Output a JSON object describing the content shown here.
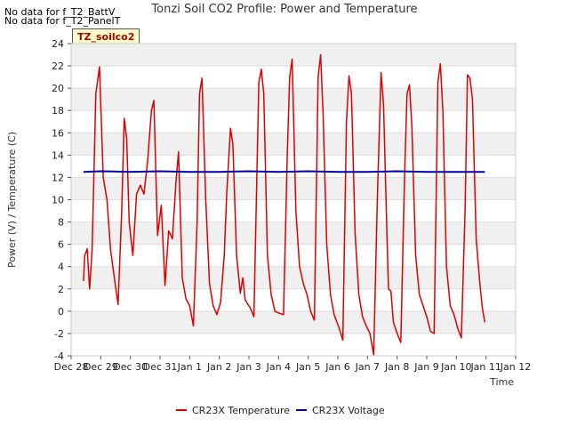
{
  "notes": [
    "No data for f_T2_BattV",
    "No data for f_T2_PanelT"
  ],
  "badge": "TZ_soilco2",
  "chart_data": {
    "type": "line",
    "title": "Tonzi Soil CO2 Profile: Power and Temperature",
    "xlabel": "Time",
    "ylabel": "Power (V) / Temperature (C)",
    "ylim": [
      -4,
      24
    ],
    "yticks": [
      -4,
      -2,
      0,
      2,
      4,
      6,
      8,
      10,
      12,
      14,
      16,
      18,
      20,
      22,
      24
    ],
    "xlim": [
      "2023-12-28",
      "2024-01-12"
    ],
    "xtick_labels": [
      "Dec 28",
      "Dec 29",
      "Dec 30",
      "Dec 31",
      "Jan 1",
      "Jan 2",
      "Jan 3",
      "Jan 4",
      "Jan 5",
      "Jan 6",
      "Jan 7",
      "Jan 8",
      "Jan 9",
      "Jan 10",
      "Jan 11",
      "Jan 12"
    ],
    "grid": "horizontal bands",
    "legend_position": "bottom",
    "series": [
      {
        "name": "CR23X Temperature",
        "color": "#dd0000",
        "points": [
          [
            "2023-12-28 10:00",
            2.7
          ],
          [
            "2023-12-28 11:00",
            5.0
          ],
          [
            "2023-12-28 13:00",
            5.6
          ],
          [
            "2023-12-28 15:00",
            2.0
          ],
          [
            "2023-12-28 17:00",
            5.5
          ],
          [
            "2023-12-28 20:00",
            19.5
          ],
          [
            "2023-12-28 23:00",
            21.9
          ],
          [
            "2023-12-29 02:00",
            12.0
          ],
          [
            "2023-12-29 05:00",
            10.0
          ],
          [
            "2023-12-29 08:00",
            5.5
          ],
          [
            "2023-12-29 11:00",
            3.0
          ],
          [
            "2023-12-29 14:00",
            0.6
          ],
          [
            "2023-12-29 17:00",
            9.0
          ],
          [
            "2023-12-29 19:00",
            17.3
          ],
          [
            "2023-12-29 21:00",
            15.5
          ],
          [
            "2023-12-29 23:00",
            8.0
          ],
          [
            "2023-12-30 02:00",
            5.0
          ],
          [
            "2023-12-30 05:00",
            10.5
          ],
          [
            "2023-12-30 08:00",
            11.3
          ],
          [
            "2023-12-30 11:00",
            10.5
          ],
          [
            "2023-12-30 14:00",
            13.5
          ],
          [
            "2023-12-30 17:00",
            18.0
          ],
          [
            "2023-12-30 19:00",
            18.9
          ],
          [
            "2023-12-30 22:00",
            6.8
          ],
          [
            "2023-12-31 01:00",
            9.5
          ],
          [
            "2023-12-31 04:00",
            2.3
          ],
          [
            "2023-12-31 07:00",
            7.2
          ],
          [
            "2023-12-31 10:00",
            6.5
          ],
          [
            "2023-12-31 13:00",
            11.8
          ],
          [
            "2023-12-31 15:00",
            14.3
          ],
          [
            "2023-12-31 18:00",
            3.0
          ],
          [
            "2023-12-31 21:00",
            1.1
          ],
          [
            "2024-01-01 00:00",
            0.5
          ],
          [
            "2024-01-01 03:00",
            -1.3
          ],
          [
            "2024-01-01 06:00",
            8.0
          ],
          [
            "2024-01-01 08:00",
            19.5
          ],
          [
            "2024-01-01 10:00",
            20.9
          ],
          [
            "2024-01-01 13:00",
            10.0
          ],
          [
            "2024-01-01 16:00",
            2.5
          ],
          [
            "2024-01-01 19:00",
            0.5
          ],
          [
            "2024-01-01 22:00",
            -0.3
          ],
          [
            "2024-01-02 01:00",
            0.8
          ],
          [
            "2024-01-02 04:00",
            5.0
          ],
          [
            "2024-01-02 06:00",
            10.5
          ],
          [
            "2024-01-02 09:00",
            16.4
          ],
          [
            "2024-01-02 11:00",
            15.0
          ],
          [
            "2024-01-02 14:00",
            5.0
          ],
          [
            "2024-01-02 17:00",
            1.6
          ],
          [
            "2024-01-02 19:00",
            3.0
          ],
          [
            "2024-01-02 21:00",
            1.0
          ],
          [
            "2024-01-03 01:00",
            0.3
          ],
          [
            "2024-01-03 04:00",
            -0.5
          ],
          [
            "2024-01-03 08:00",
            20.5
          ],
          [
            "2024-01-03 10:00",
            21.7
          ],
          [
            "2024-01-03 12:00",
            19.5
          ],
          [
            "2024-01-03 15:00",
            5.0
          ],
          [
            "2024-01-03 18:00",
            1.5
          ],
          [
            "2024-01-03 21:00",
            0.0
          ],
          [
            "2024-01-04 01:00",
            -0.2
          ],
          [
            "2024-01-04 04:00",
            -0.3
          ],
          [
            "2024-01-04 07:00",
            14.0
          ],
          [
            "2024-01-04 09:00",
            21.0
          ],
          [
            "2024-01-04 11:00",
            22.6
          ],
          [
            "2024-01-04 14:00",
            9.0
          ],
          [
            "2024-01-04 17:00",
            4.0
          ],
          [
            "2024-01-04 20:00",
            2.5
          ],
          [
            "2024-01-04 23:00",
            1.5
          ],
          [
            "2024-01-05 02:00",
            0.0
          ],
          [
            "2024-01-05 05:00",
            -0.8
          ],
          [
            "2024-01-05 08:00",
            21.0
          ],
          [
            "2024-01-05 10:00",
            23.0
          ],
          [
            "2024-01-05 12:00",
            18.0
          ],
          [
            "2024-01-05 15:00",
            6.0
          ],
          [
            "2024-01-05 18:00",
            1.5
          ],
          [
            "2024-01-05 21:00",
            -0.3
          ],
          [
            "2024-01-06 01:00",
            -1.5
          ],
          [
            "2024-01-06 04:00",
            -2.6
          ],
          [
            "2024-01-06 07:00",
            17.0
          ],
          [
            "2024-01-06 09:00",
            21.1
          ],
          [
            "2024-01-06 11:00",
            19.5
          ],
          [
            "2024-01-06 14:00",
            7.0
          ],
          [
            "2024-01-06 17:00",
            1.5
          ],
          [
            "2024-01-06 20:00",
            -0.5
          ],
          [
            "2024-01-06 23:00",
            -1.3
          ],
          [
            "2024-01-07 02:00",
            -2.0
          ],
          [
            "2024-01-07 05:00",
            -3.9
          ],
          [
            "2024-01-07 08:00",
            10.0
          ],
          [
            "2024-01-07 11:00",
            21.4
          ],
          [
            "2024-01-07 13:00",
            18.5
          ],
          [
            "2024-01-07 15:00",
            10.0
          ],
          [
            "2024-01-07 17:00",
            2.0
          ],
          [
            "2024-01-07 19:00",
            1.8
          ],
          [
            "2024-01-07 21:00",
            -1.0
          ],
          [
            "2024-01-08 00:00",
            -2.0
          ],
          [
            "2024-01-08 03:00",
            -2.8
          ],
          [
            "2024-01-08 06:00",
            12.0
          ],
          [
            "2024-01-08 08:00",
            19.5
          ],
          [
            "2024-01-08 10:00",
            20.3
          ],
          [
            "2024-01-08 12:00",
            16.5
          ],
          [
            "2024-01-08 15:00",
            5.0
          ],
          [
            "2024-01-08 18:00",
            1.5
          ],
          [
            "2024-01-08 21:00",
            0.5
          ],
          [
            "2024-01-09 00:00",
            -0.5
          ],
          [
            "2024-01-09 03:00",
            -1.8
          ],
          [
            "2024-01-09 06:00",
            -2.0
          ],
          [
            "2024-01-09 09:00",
            20.5
          ],
          [
            "2024-01-09 11:00",
            22.2
          ],
          [
            "2024-01-09 13:00",
            18.0
          ],
          [
            "2024-01-09 16:00",
            4.0
          ],
          [
            "2024-01-09 19:00",
            0.5
          ],
          [
            "2024-01-09 22:00",
            -0.3
          ],
          [
            "2024-01-10 01:00",
            -1.5
          ],
          [
            "2024-01-10 04:00",
            -2.4
          ],
          [
            "2024-01-10 07:00",
            9.0
          ],
          [
            "2024-01-10 09:00",
            21.2
          ],
          [
            "2024-01-10 11:00",
            20.9
          ],
          [
            "2024-01-10 13:00",
            19.0
          ],
          [
            "2024-01-10 16:00",
            6.5
          ],
          [
            "2024-01-10 19:00",
            2.5
          ],
          [
            "2024-01-10 21:00",
            0.3
          ],
          [
            "2024-01-10 23:00",
            -1.0
          ]
        ]
      },
      {
        "name": "CR23X Voltage",
        "color": "#0000aa",
        "points": [
          [
            "2023-12-28 10:00",
            12.5
          ],
          [
            "2023-12-29 00:00",
            12.55
          ],
          [
            "2023-12-30 00:00",
            12.5
          ],
          [
            "2023-12-31 00:00",
            12.55
          ],
          [
            "2024-01-01 00:00",
            12.5
          ],
          [
            "2024-01-02 00:00",
            12.5
          ],
          [
            "2024-01-03 00:00",
            12.55
          ],
          [
            "2024-01-04 00:00",
            12.5
          ],
          [
            "2024-01-05 00:00",
            12.55
          ],
          [
            "2024-01-06 00:00",
            12.5
          ],
          [
            "2024-01-07 00:00",
            12.5
          ],
          [
            "2024-01-08 00:00",
            12.55
          ],
          [
            "2024-01-09 00:00",
            12.5
          ],
          [
            "2024-01-10 00:00",
            12.5
          ],
          [
            "2024-01-10 23:00",
            12.5
          ]
        ]
      }
    ]
  }
}
